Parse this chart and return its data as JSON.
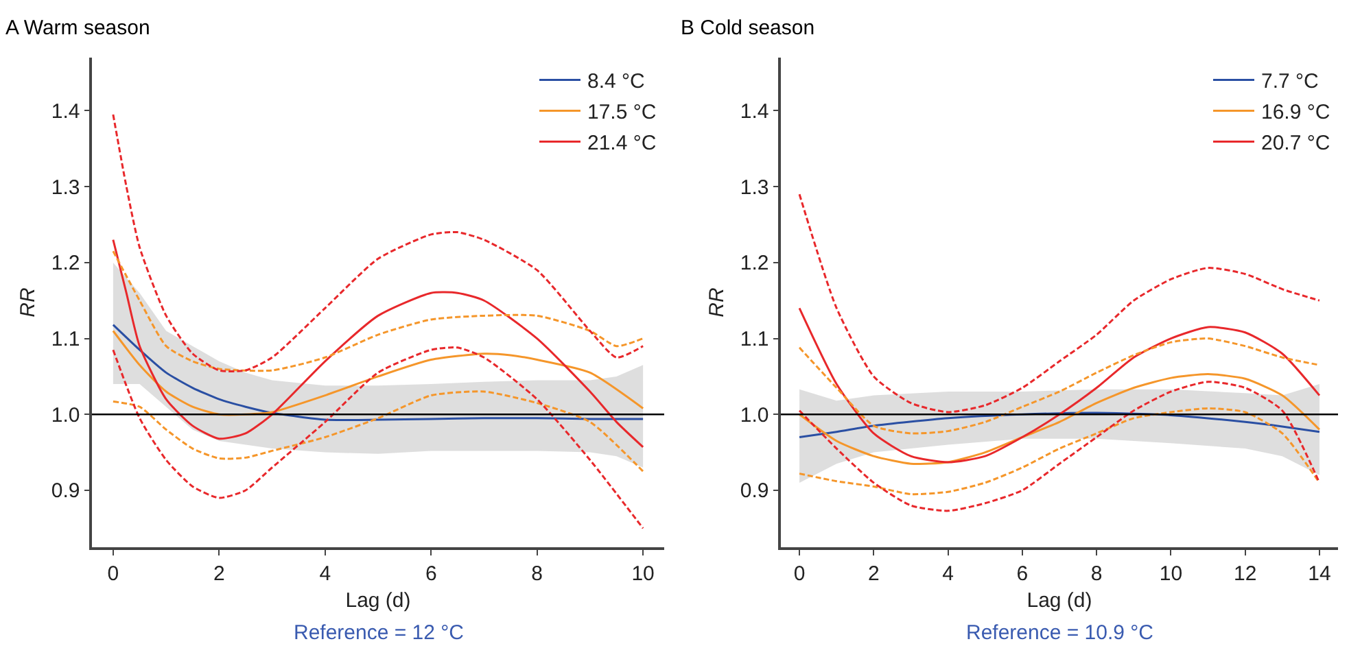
{
  "chart_data": [
    {
      "type": "line",
      "title": "A Warm season",
      "xlabel": "Lag (d)",
      "ylabel": "RR",
      "xlim": [
        -0.4,
        10.4
      ],
      "xticks": [
        0,
        2,
        4,
        6,
        8,
        10
      ],
      "ylim": [
        0.825,
        1.47
      ],
      "yticks": [
        0.9,
        {
          "value": 1.0,
          "label": "1.0"
        },
        1.1,
        1.2,
        1.3,
        1.4
      ],
      "grid": false,
      "legend": "top right",
      "line_style": "solid",
      "annotations": [
        "Reference = 12 °C"
      ],
      "ref_lines": [
        {
          "axis": "y",
          "value": 1.0,
          "color": "#000000"
        }
      ],
      "series": [
        {
          "name": "8.4 °C",
          "color": "#2a4fa3",
          "x": [
            0,
            0.5,
            1,
            1.5,
            2,
            2.5,
            3,
            4,
            5,
            6,
            7,
            8,
            9,
            9.5,
            10
          ],
          "values": [
            1.118,
            1.085,
            1.055,
            1.035,
            1.02,
            1.01,
            1.002,
            0.993,
            0.993,
            0.994,
            0.995,
            0.995,
            0.994,
            0.994,
            0.994
          ],
          "upper": [
            1.2,
            1.16,
            1.11,
            1.09,
            1.07,
            1.055,
            1.045,
            1.038,
            1.038,
            1.04,
            1.043,
            1.045,
            1.045,
            1.05,
            1.065
          ],
          "lower": [
            1.04,
            1.04,
            1.01,
            0.98,
            0.965,
            0.96,
            0.955,
            0.95,
            0.948,
            0.952,
            0.952,
            0.952,
            0.95,
            0.945,
            0.93
          ]
        },
        {
          "name": "17.5 °C",
          "color": "#f5962a",
          "x": [
            0,
            0.5,
            1,
            1.5,
            2,
            2.5,
            3,
            4,
            5,
            6,
            7,
            7.5,
            8,
            9,
            10
          ],
          "values": [
            1.11,
            1.065,
            1.03,
            1.01,
            1.0,
            1.0,
            1.003,
            1.025,
            1.05,
            1.072,
            1.08,
            1.078,
            1.072,
            1.055,
            1.008
          ]
        },
        {
          "name": "21.4 °C",
          "color": "#e8282b",
          "x": [
            0,
            0.25,
            0.5,
            1,
            1.5,
            2,
            2.5,
            3,
            4,
            5,
            6,
            6.5,
            7,
            8,
            9,
            9.5,
            10
          ],
          "values": [
            1.23,
            1.16,
            1.09,
            1.02,
            0.985,
            0.968,
            0.975,
            1.0,
            1.07,
            1.13,
            1.16,
            1.16,
            1.15,
            1.1,
            1.03,
            0.99,
            0.957
          ]
        },
        {
          "color": "#f5962a",
          "line_style": "dashed",
          "x": [
            0,
            0.5,
            1,
            1.5,
            2,
            3,
            4,
            5,
            6,
            7,
            8,
            9,
            9.5,
            10
          ],
          "values": [
            1.215,
            1.15,
            1.09,
            1.07,
            1.06,
            1.058,
            1.075,
            1.105,
            1.125,
            1.13,
            1.13,
            1.11,
            1.09,
            1.1
          ]
        },
        {
          "color": "#f5962a",
          "line_style": "dashed",
          "x": [
            0,
            0.5,
            1,
            1.5,
            2,
            2.5,
            3,
            4,
            5,
            6,
            7,
            8,
            9,
            10
          ],
          "values": [
            1.017,
            1.01,
            0.98,
            0.955,
            0.942,
            0.943,
            0.952,
            0.97,
            0.995,
            1.025,
            1.03,
            1.015,
            0.99,
            0.925
          ]
        },
        {
          "color": "#e8282b",
          "line_style": "dashed",
          "x": [
            0,
            0.25,
            0.5,
            1,
            1.5,
            2,
            2.5,
            3,
            4,
            5,
            6,
            6.5,
            7,
            8,
            9,
            9.5,
            10
          ],
          "values": [
            1.395,
            1.3,
            1.22,
            1.13,
            1.08,
            1.058,
            1.058,
            1.075,
            1.14,
            1.205,
            1.237,
            1.24,
            1.23,
            1.19,
            1.11,
            1.075,
            1.09
          ]
        },
        {
          "color": "#e8282b",
          "line_style": "dashed",
          "x": [
            0,
            0.5,
            1,
            1.5,
            2,
            2.5,
            3,
            4,
            5,
            6,
            6.5,
            7,
            8,
            9,
            10
          ],
          "values": [
            1.085,
            0.995,
            0.94,
            0.905,
            0.89,
            0.9,
            0.93,
            0.99,
            1.055,
            1.085,
            1.088,
            1.075,
            1.02,
            0.94,
            0.85
          ]
        }
      ]
    },
    {
      "type": "line",
      "title": "B Cold season",
      "xlabel": "Lag (d)",
      "ylabel": "RR",
      "xlim": [
        -0.5,
        14.5
      ],
      "xticks": [
        0,
        2,
        4,
        6,
        8,
        10,
        12,
        14
      ],
      "ylim": [
        0.825,
        1.47
      ],
      "yticks": [
        0.9,
        {
          "value": 1.0,
          "label": "1.0"
        },
        1.1,
        1.2,
        1.3,
        1.4
      ],
      "grid": false,
      "legend": "top right",
      "line_style": "solid",
      "annotations": [
        "Reference = 10.9 °C"
      ],
      "ref_lines": [
        {
          "axis": "y",
          "value": 1.0,
          "color": "#000000"
        }
      ],
      "series": [
        {
          "name": "7.7 °C",
          "color": "#2a4fa3",
          "x": [
            0,
            1,
            2,
            4,
            6,
            8,
            10,
            12,
            13,
            14
          ],
          "values": [
            0.97,
            0.977,
            0.985,
            0.995,
            1.0,
            1.002,
            0.999,
            0.99,
            0.984,
            0.977
          ],
          "upper": [
            1.033,
            1.018,
            1.025,
            1.03,
            1.03,
            1.033,
            1.033,
            1.028,
            1.025,
            1.04
          ],
          "lower": [
            0.91,
            0.935,
            0.95,
            0.96,
            0.968,
            0.968,
            0.962,
            0.955,
            0.945,
            0.92
          ]
        },
        {
          "name": "16.9 °C",
          "color": "#f5962a",
          "x": [
            0,
            1,
            2,
            3,
            4,
            5,
            6,
            7,
            8,
            9,
            10,
            11,
            12,
            13,
            14
          ],
          "values": [
            1.0,
            0.965,
            0.945,
            0.935,
            0.937,
            0.95,
            0.97,
            0.99,
            1.015,
            1.035,
            1.048,
            1.053,
            1.047,
            1.025,
            0.98
          ]
        },
        {
          "name": "20.7 °C",
          "color": "#e8282b",
          "x": [
            0,
            1,
            2,
            3,
            4,
            5,
            6,
            7,
            8,
            9,
            10,
            11,
            12,
            13,
            14
          ],
          "values": [
            1.14,
            1.04,
            0.975,
            0.945,
            0.937,
            0.945,
            0.97,
            1.0,
            1.035,
            1.075,
            1.1,
            1.115,
            1.108,
            1.08,
            1.025
          ]
        },
        {
          "color": "#f5962a",
          "line_style": "dashed",
          "x": [
            0,
            1,
            2,
            3,
            4,
            5,
            6,
            7,
            8,
            9,
            10,
            11,
            12,
            13,
            14
          ],
          "values": [
            1.088,
            1.035,
            0.985,
            0.975,
            0.978,
            0.99,
            1.01,
            1.03,
            1.055,
            1.078,
            1.095,
            1.1,
            1.09,
            1.075,
            1.065
          ]
        },
        {
          "color": "#f5962a",
          "line_style": "dashed",
          "x": [
            0,
            1,
            2,
            3,
            4,
            5,
            6,
            7,
            8,
            9,
            10,
            11,
            12,
            13,
            14
          ],
          "values": [
            0.922,
            0.912,
            0.905,
            0.895,
            0.898,
            0.91,
            0.93,
            0.955,
            0.975,
            0.995,
            1.003,
            1.008,
            1.003,
            0.975,
            0.91
          ]
        },
        {
          "color": "#e8282b",
          "line_style": "dashed",
          "x": [
            0,
            1,
            2,
            3,
            4,
            5,
            6,
            7,
            8,
            9,
            10,
            11,
            12,
            13,
            14
          ],
          "values": [
            1.29,
            1.14,
            1.05,
            1.015,
            1.003,
            1.012,
            1.035,
            1.07,
            1.105,
            1.15,
            1.178,
            1.193,
            1.185,
            1.165,
            1.15
          ]
        },
        {
          "color": "#e8282b",
          "line_style": "dashed",
          "x": [
            0,
            1,
            2,
            3,
            4,
            5,
            6,
            7,
            8,
            9,
            10,
            11,
            12,
            13,
            14
          ],
          "values": [
            1.005,
            0.955,
            0.91,
            0.88,
            0.873,
            0.883,
            0.9,
            0.935,
            0.97,
            1.005,
            1.03,
            1.043,
            1.035,
            1.005,
            0.91
          ]
        }
      ]
    }
  ]
}
